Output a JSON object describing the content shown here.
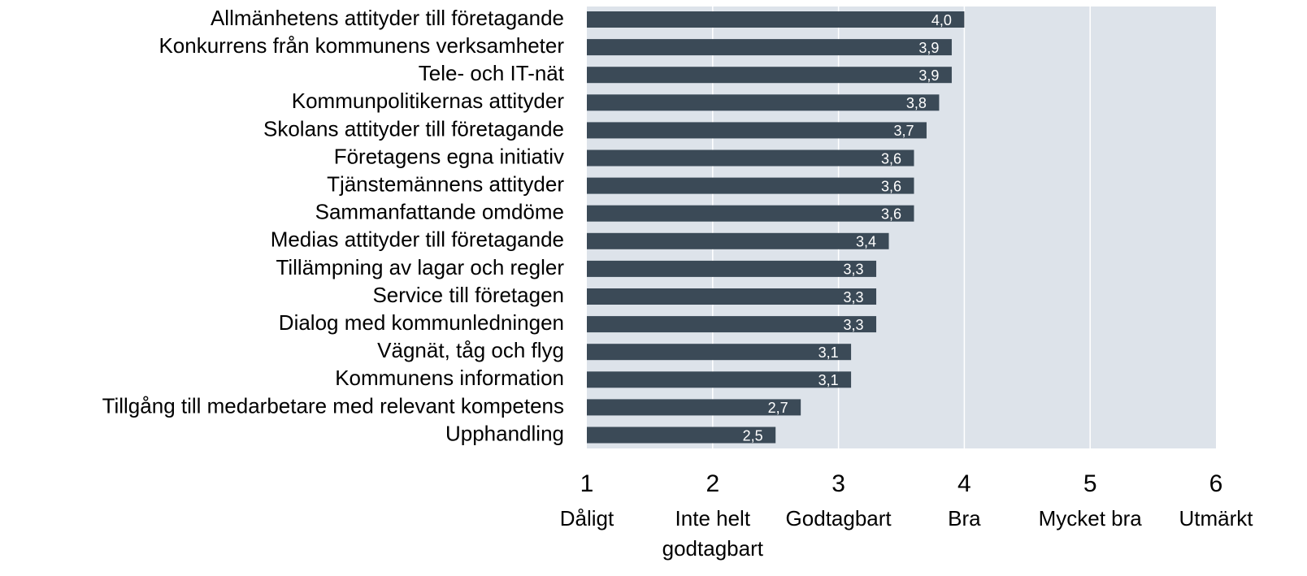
{
  "chart_data": {
    "type": "bar",
    "orientation": "horizontal",
    "categories": [
      "Allmänhetens attityder till företagande",
      "Konkurrens från kommunens verksamheter",
      "Tele- och IT-nät",
      "Kommunpolitikernas attityder",
      "Skolans attityder till företagande",
      "Företagens egna initiativ",
      "Tjänstemännens attityder",
      "Sammanfattande omdöme",
      "Medias attityder till företagande",
      "Tillämpning av lagar och regler",
      "Service till företagen",
      "Dialog med kommunledningen",
      "Vägnät, tåg och flyg",
      "Kommunens information",
      "Tillgång till medarbetare med relevant kompetens",
      "Upphandling"
    ],
    "values": [
      4.0,
      3.9,
      3.9,
      3.8,
      3.7,
      3.6,
      3.6,
      3.6,
      3.4,
      3.3,
      3.3,
      3.3,
      3.1,
      3.1,
      2.7,
      2.5
    ],
    "value_labels": [
      "4,0",
      "3,9",
      "3,9",
      "3,8",
      "3,7",
      "3,6",
      "3,6",
      "3,6",
      "3,4",
      "3,3",
      "3,3",
      "3,3",
      "3,1",
      "3,1",
      "2,7",
      "2,5"
    ],
    "color": "#3b4a57",
    "xlim": [
      1,
      6
    ],
    "xticks": [
      1,
      2,
      3,
      4,
      5,
      6
    ],
    "xtick_descriptions": [
      "Dåligt",
      "Inte helt\ngodtagbart",
      "Godtagbart",
      "Bra",
      "Mycket bra",
      "Utmärkt"
    ],
    "grid": true
  }
}
